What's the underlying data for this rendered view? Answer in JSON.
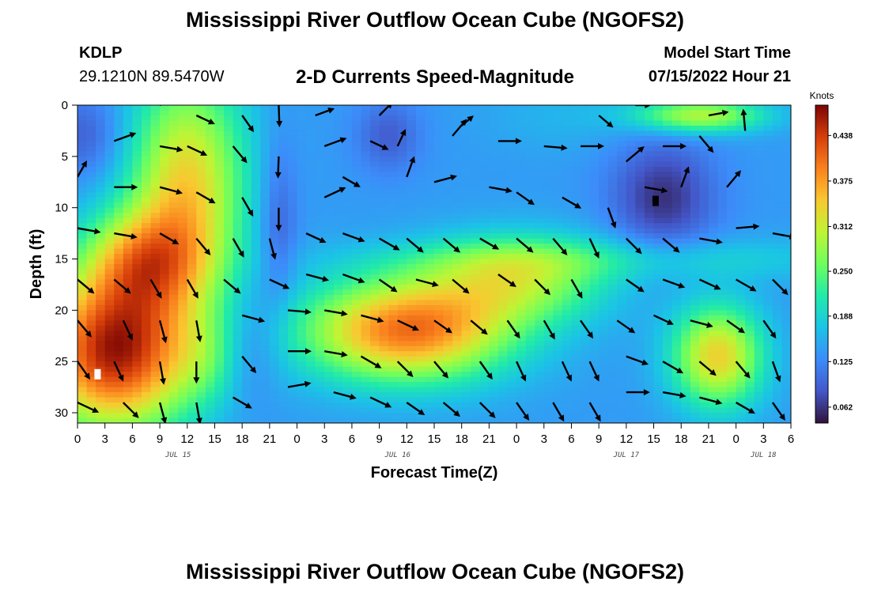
{
  "header": {
    "title": "Mississippi River Outflow Ocean Cube (NGOFS2)",
    "station_code": "KDLP",
    "station_coords": "29.1210N  89.5470W",
    "subtitle": "2-D Currents Speed-Magnitude",
    "model_start_label": "Model Start Time",
    "model_start_value": "07/15/2022 Hour 21"
  },
  "footer": {
    "title": "Mississippi River Outflow Ocean Cube (NGOFS2)"
  },
  "chart_data": {
    "type": "heatmap",
    "xlabel": "Forecast Time(Z)",
    "ylabel": "Depth (ft)",
    "x_range_hours": [
      0,
      78
    ],
    "y_range_ft": [
      0,
      31
    ],
    "y_inverted": true,
    "x_tick_labels": [
      "0",
      "3",
      "6",
      "9",
      "12",
      "15",
      "18",
      "21",
      "0",
      "3",
      "6",
      "9",
      "12",
      "15",
      "18",
      "21",
      "0",
      "3",
      "6",
      "9",
      "12",
      "15",
      "18",
      "21",
      "0",
      "3",
      "6"
    ],
    "y_ticks": [
      0,
      5,
      10,
      15,
      20,
      25,
      30
    ],
    "date_labels": [
      {
        "label": "JUL 15",
        "hour": 11
      },
      {
        "label": "JUL 16",
        "hour": 35
      },
      {
        "label": "JUL 17",
        "hour": 60
      },
      {
        "label": "JUL 18",
        "hour": 75
      }
    ],
    "colorbar": {
      "units": "Knots",
      "ticks": [
        0.438,
        0.375,
        0.312,
        0.25,
        0.188,
        0.125,
        0.062
      ],
      "range": [
        0.04,
        0.48
      ]
    },
    "speed_field": {
      "background": 0.14,
      "blobs": [
        {
          "x": 12,
          "y": 8,
          "sx": 4.5,
          "sy": 8,
          "v": 0.2
        },
        {
          "x": 7,
          "y": 15,
          "sx": 4.5,
          "sy": 3.5,
          "v": 0.15
        },
        {
          "x": 4,
          "y": 24,
          "sx": 6,
          "sy": 5.5,
          "v": 0.32
        },
        {
          "x": 14,
          "y": 25,
          "sx": 2.5,
          "sy": 3,
          "v": 0.04
        },
        {
          "x": 36,
          "y": 22,
          "sx": 8,
          "sy": 3.5,
          "v": 0.26
        },
        {
          "x": 48,
          "y": 17,
          "sx": 7,
          "sy": 3,
          "v": 0.14
        },
        {
          "x": 70,
          "y": 24.5,
          "sx": 3.5,
          "sy": 3.5,
          "v": 0.2
        },
        {
          "x": 68,
          "y": 1,
          "sx": 5,
          "sy": 1.2,
          "v": 0.16
        },
        {
          "x": 64,
          "y": 9,
          "sx": 4,
          "sy": 4,
          "v": -0.08
        },
        {
          "x": 34,
          "y": 3,
          "sx": 2.5,
          "sy": 2.5,
          "v": -0.05
        },
        {
          "x": 1,
          "y": 3,
          "sx": 3,
          "sy": 3,
          "v": -0.05
        },
        {
          "x": 19,
          "y": 23,
          "sx": 2,
          "sy": 4,
          "v": -0.04
        },
        {
          "x": 53,
          "y": 1,
          "sx": 6,
          "sy": 2.5,
          "v": 0.02
        },
        {
          "x": 60,
          "y": 15,
          "sx": 20,
          "sy": 1.5,
          "v": 0.05
        },
        {
          "x": 22,
          "y": 12,
          "sx": 1.5,
          "sy": 6,
          "v": -0.05
        }
      ]
    },
    "vectors": [
      {
        "x": 9,
        "y": 0,
        "dir": -20,
        "len": 26
      },
      {
        "x": 13,
        "y": 1,
        "dir": 25,
        "len": 26
      },
      {
        "x": 18,
        "y": 1,
        "dir": 55,
        "len": 26
      },
      {
        "x": 22,
        "y": 0,
        "dir": 88,
        "len": 28
      },
      {
        "x": 26,
        "y": 1,
        "dir": -20,
        "len": 26
      },
      {
        "x": 33,
        "y": 1,
        "dir": -45,
        "len": 24
      },
      {
        "x": 38,
        "y": 0,
        "dir": -40,
        "len": 28
      },
      {
        "x": 42,
        "y": 2,
        "dir": -40,
        "len": 20
      },
      {
        "x": 57,
        "y": 1,
        "dir": 40,
        "len": 24
      },
      {
        "x": 61,
        "y": 0,
        "dir": 0,
        "len": 20
      },
      {
        "x": 69,
        "y": 1,
        "dir": -10,
        "len": 26
      },
      {
        "x": 4,
        "y": 3.5,
        "dir": -20,
        "len": 30
      },
      {
        "x": 9,
        "y": 4,
        "dir": 10,
        "len": 30
      },
      {
        "x": 12,
        "y": 4,
        "dir": 25,
        "len": 28
      },
      {
        "x": 17,
        "y": 4,
        "dir": 50,
        "len": 28
      },
      {
        "x": 22,
        "y": 5,
        "dir": 92,
        "len": 28
      },
      {
        "x": 27,
        "y": 4,
        "dir": -20,
        "len": 30
      },
      {
        "x": 32,
        "y": 3.5,
        "dir": 25,
        "len": 26
      },
      {
        "x": 35,
        "y": 4,
        "dir": -65,
        "len": 24
      },
      {
        "x": 41,
        "y": 3,
        "dir": -50,
        "len": 28
      },
      {
        "x": 46,
        "y": 3.5,
        "dir": 0,
        "len": 30
      },
      {
        "x": 51,
        "y": 4,
        "dir": 5,
        "len": 30
      },
      {
        "x": 55,
        "y": 4,
        "dir": 0,
        "len": 30
      },
      {
        "x": 60,
        "y": 5.5,
        "dir": -40,
        "len": 30
      },
      {
        "x": 64,
        "y": 4,
        "dir": 0,
        "len": 30
      },
      {
        "x": 68,
        "y": 3,
        "dir": 50,
        "len": 28
      },
      {
        "x": 73,
        "y": 2.5,
        "dir": -95,
        "len": 28
      },
      {
        "x": 0,
        "y": 7,
        "dir": -60,
        "len": 24
      },
      {
        "x": 4,
        "y": 8,
        "dir": 0,
        "len": 30
      },
      {
        "x": 9,
        "y": 8,
        "dir": 15,
        "len": 30
      },
      {
        "x": 13,
        "y": 8.5,
        "dir": 30,
        "len": 28
      },
      {
        "x": 18,
        "y": 9,
        "dir": 60,
        "len": 28
      },
      {
        "x": 22,
        "y": 10,
        "dir": 90,
        "len": 30
      },
      {
        "x": 27,
        "y": 9,
        "dir": -25,
        "len": 30
      },
      {
        "x": 29,
        "y": 7,
        "dir": 30,
        "len": 26
      },
      {
        "x": 36,
        "y": 7,
        "dir": -70,
        "len": 28
      },
      {
        "x": 39,
        "y": 7.5,
        "dir": -15,
        "len": 30
      },
      {
        "x": 45,
        "y": 8,
        "dir": 10,
        "len": 30
      },
      {
        "x": 48,
        "y": 8.5,
        "dir": 35,
        "len": 28
      },
      {
        "x": 53,
        "y": 9,
        "dir": 30,
        "len": 28
      },
      {
        "x": 58,
        "y": 10,
        "dir": 70,
        "len": 28
      },
      {
        "x": 62,
        "y": 8,
        "dir": 10,
        "len": 30
      },
      {
        "x": 66,
        "y": 8,
        "dir": -70,
        "len": 28
      },
      {
        "x": 71,
        "y": 8,
        "dir": -50,
        "len": 28
      },
      {
        "x": 0,
        "y": 12,
        "dir": 10,
        "len": 30
      },
      {
        "x": 4,
        "y": 12.5,
        "dir": 10,
        "len": 30
      },
      {
        "x": 9,
        "y": 12.5,
        "dir": 30,
        "len": 28
      },
      {
        "x": 13,
        "y": 13,
        "dir": 50,
        "len": 28
      },
      {
        "x": 17,
        "y": 13,
        "dir": 60,
        "len": 28
      },
      {
        "x": 21,
        "y": 13,
        "dir": 75,
        "len": 28
      },
      {
        "x": 25,
        "y": 12.5,
        "dir": 25,
        "len": 28
      },
      {
        "x": 29,
        "y": 12.5,
        "dir": 20,
        "len": 30
      },
      {
        "x": 33,
        "y": 13,
        "dir": 30,
        "len": 30
      },
      {
        "x": 36,
        "y": 13,
        "dir": 40,
        "len": 28
      },
      {
        "x": 40,
        "y": 13,
        "dir": 40,
        "len": 28
      },
      {
        "x": 44,
        "y": 13,
        "dir": 30,
        "len": 28
      },
      {
        "x": 48,
        "y": 13,
        "dir": 40,
        "len": 28
      },
      {
        "x": 52,
        "y": 13,
        "dir": 50,
        "len": 28
      },
      {
        "x": 56,
        "y": 13,
        "dir": 65,
        "len": 28
      },
      {
        "x": 60,
        "y": 13,
        "dir": 45,
        "len": 28
      },
      {
        "x": 64,
        "y": 13,
        "dir": 40,
        "len": 28
      },
      {
        "x": 68,
        "y": 13,
        "dir": 10,
        "len": 30
      },
      {
        "x": 72,
        "y": 12,
        "dir": -5,
        "len": 30
      },
      {
        "x": 76,
        "y": 12.5,
        "dir": 10,
        "len": 30
      },
      {
        "x": 0,
        "y": 17,
        "dir": 40,
        "len": 28
      },
      {
        "x": 4,
        "y": 17,
        "dir": 40,
        "len": 28
      },
      {
        "x": 8,
        "y": 17,
        "dir": 60,
        "len": 28
      },
      {
        "x": 12,
        "y": 17,
        "dir": 60,
        "len": 28
      },
      {
        "x": 16,
        "y": 17,
        "dir": 40,
        "len": 28
      },
      {
        "x": 21,
        "y": 17,
        "dir": 25,
        "len": 28
      },
      {
        "x": 25,
        "y": 16.5,
        "dir": 15,
        "len": 30
      },
      {
        "x": 29,
        "y": 16.5,
        "dir": 20,
        "len": 30
      },
      {
        "x": 33,
        "y": 17,
        "dir": 35,
        "len": 28
      },
      {
        "x": 37,
        "y": 17,
        "dir": 15,
        "len": 30
      },
      {
        "x": 41,
        "y": 17,
        "dir": 40,
        "len": 28
      },
      {
        "x": 46,
        "y": 16.5,
        "dir": 35,
        "len": 28
      },
      {
        "x": 50,
        "y": 17,
        "dir": 45,
        "len": 28
      },
      {
        "x": 54,
        "y": 17,
        "dir": 60,
        "len": 28
      },
      {
        "x": 60,
        "y": 17,
        "dir": 35,
        "len": 28
      },
      {
        "x": 64,
        "y": 17,
        "dir": 20,
        "len": 30
      },
      {
        "x": 68,
        "y": 17,
        "dir": 25,
        "len": 30
      },
      {
        "x": 72,
        "y": 17,
        "dir": 30,
        "len": 30
      },
      {
        "x": 76,
        "y": 17,
        "dir": 45,
        "len": 28
      },
      {
        "x": 0,
        "y": 21,
        "dir": 50,
        "len": 28
      },
      {
        "x": 5,
        "y": 21,
        "dir": 65,
        "len": 28
      },
      {
        "x": 9,
        "y": 21,
        "dir": 75,
        "len": 30
      },
      {
        "x": 13,
        "y": 21,
        "dir": 80,
        "len": 28
      },
      {
        "x": 18,
        "y": 20.5,
        "dir": 15,
        "len": 30
      },
      {
        "x": 23,
        "y": 20,
        "dir": 5,
        "len": 30
      },
      {
        "x": 27,
        "y": 20,
        "dir": 10,
        "len": 30
      },
      {
        "x": 31,
        "y": 20.5,
        "dir": 15,
        "len": 30
      },
      {
        "x": 35,
        "y": 21,
        "dir": 25,
        "len": 30
      },
      {
        "x": 39,
        "y": 21,
        "dir": 35,
        "len": 28
      },
      {
        "x": 43,
        "y": 21,
        "dir": 40,
        "len": 28
      },
      {
        "x": 47,
        "y": 21,
        "dir": 55,
        "len": 28
      },
      {
        "x": 51,
        "y": 21,
        "dir": 60,
        "len": 28
      },
      {
        "x": 55,
        "y": 21,
        "dir": 55,
        "len": 28
      },
      {
        "x": 59,
        "y": 21,
        "dir": 35,
        "len": 28
      },
      {
        "x": 63,
        "y": 20.5,
        "dir": 25,
        "len": 28
      },
      {
        "x": 67,
        "y": 21,
        "dir": 15,
        "len": 30
      },
      {
        "x": 71,
        "y": 21,
        "dir": 35,
        "len": 28
      },
      {
        "x": 75,
        "y": 21,
        "dir": 55,
        "len": 28
      },
      {
        "x": 0,
        "y": 25,
        "dir": 55,
        "len": 28
      },
      {
        "x": 4,
        "y": 25,
        "dir": 65,
        "len": 28
      },
      {
        "x": 9,
        "y": 25,
        "dir": 80,
        "len": 30
      },
      {
        "x": 13,
        "y": 25,
        "dir": 90,
        "len": 28
      },
      {
        "x": 18,
        "y": 24.5,
        "dir": 50,
        "len": 28
      },
      {
        "x": 23,
        "y": 24,
        "dir": 0,
        "len": 30
      },
      {
        "x": 27,
        "y": 24,
        "dir": 10,
        "len": 30
      },
      {
        "x": 31,
        "y": 24.5,
        "dir": 30,
        "len": 30
      },
      {
        "x": 35,
        "y": 25,
        "dir": 45,
        "len": 28
      },
      {
        "x": 39,
        "y": 25,
        "dir": 50,
        "len": 28
      },
      {
        "x": 44,
        "y": 25,
        "dir": 55,
        "len": 28
      },
      {
        "x": 48,
        "y": 25,
        "dir": 65,
        "len": 28
      },
      {
        "x": 53,
        "y": 25,
        "dir": 65,
        "len": 28
      },
      {
        "x": 56,
        "y": 25,
        "dir": 65,
        "len": 28
      },
      {
        "x": 60,
        "y": 24.5,
        "dir": 20,
        "len": 30
      },
      {
        "x": 64,
        "y": 25,
        "dir": 30,
        "len": 30
      },
      {
        "x": 68,
        "y": 25,
        "dir": 40,
        "len": 28
      },
      {
        "x": 72,
        "y": 25,
        "dir": 50,
        "len": 28
      },
      {
        "x": 76,
        "y": 25,
        "dir": 70,
        "len": 28
      },
      {
        "x": 0,
        "y": 29,
        "dir": 25,
        "len": 30
      },
      {
        "x": 5,
        "y": 29,
        "dir": 45,
        "len": 28
      },
      {
        "x": 9,
        "y": 29,
        "dir": 75,
        "len": 28
      },
      {
        "x": 13,
        "y": 29,
        "dir": 80,
        "len": 28
      },
      {
        "x": 17,
        "y": 28.5,
        "dir": 30,
        "len": 28
      },
      {
        "x": 23,
        "y": 27.5,
        "dir": -10,
        "len": 30
      },
      {
        "x": 28,
        "y": 28,
        "dir": 15,
        "len": 30
      },
      {
        "x": 32,
        "y": 28.5,
        "dir": 25,
        "len": 30
      },
      {
        "x": 36,
        "y": 29,
        "dir": 35,
        "len": 28
      },
      {
        "x": 40,
        "y": 29,
        "dir": 40,
        "len": 28
      },
      {
        "x": 44,
        "y": 29,
        "dir": 45,
        "len": 28
      },
      {
        "x": 48,
        "y": 29,
        "dir": 55,
        "len": 28
      },
      {
        "x": 52,
        "y": 29,
        "dir": 60,
        "len": 28
      },
      {
        "x": 56,
        "y": 29,
        "dir": 60,
        "len": 28
      },
      {
        "x": 60,
        "y": 28,
        "dir": 0,
        "len": 30
      },
      {
        "x": 64,
        "y": 28,
        "dir": 10,
        "len": 30
      },
      {
        "x": 68,
        "y": 28.5,
        "dir": 15,
        "len": 30
      },
      {
        "x": 72,
        "y": 29,
        "dir": 30,
        "len": 28
      },
      {
        "x": 76,
        "y": 29,
        "dir": 55,
        "len": 28
      }
    ],
    "markers": [
      {
        "x": 2.2,
        "y": 26.2,
        "color": "#ffffff"
      },
      {
        "x": 63.2,
        "y": 9.3,
        "color": "#000000"
      }
    ]
  }
}
